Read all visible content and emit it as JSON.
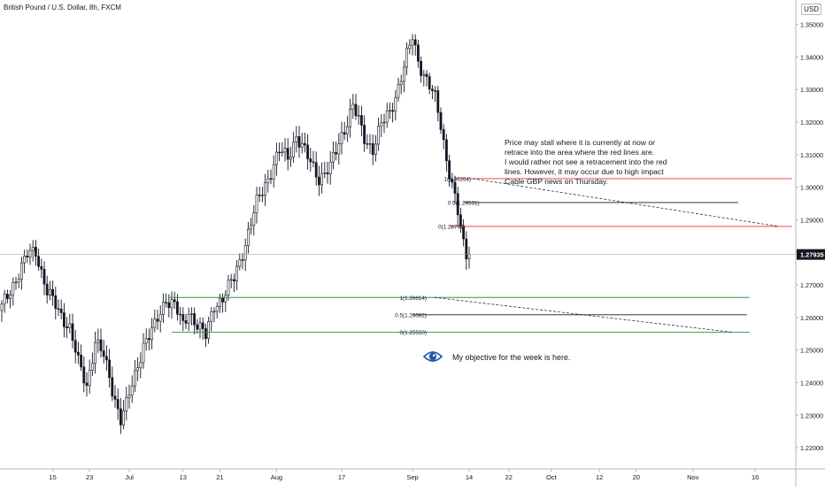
{
  "header": {
    "title": "British Pound / U.S. Dollar, 8h, FXCM",
    "currency": "USD"
  },
  "note": {
    "lines": [
      "Price may stall where it is currently at now or",
      "retrace into the area where the red lines are.",
      "I would rather not see a retracement into the red",
      "lines. However, it may occur due to high impact",
      "Cable GBP news on Thursday."
    ]
  },
  "objective": {
    "text": "My objective for the week is here.",
    "icon": "eye-icon"
  },
  "colors": {
    "up": "#131722",
    "down": "#131722",
    "red_level": "#e53935",
    "green_level": "#388e3c",
    "price_label_bg": "#131722"
  },
  "chart_data": {
    "type": "candlestick",
    "title": "British Pound / U.S. Dollar, 8h, FXCM",
    "ylim": [
      1.2135,
      1.3575
    ],
    "y_ticks": [
      "1.35000",
      "1.34000",
      "1.33000",
      "1.32000",
      "1.31000",
      "1.30000",
      "1.29000",
      "1.28000",
      "1.27000",
      "1.26000",
      "1.25000",
      "1.24000",
      "1.23000",
      "1.22000"
    ],
    "x_ticks": [
      {
        "label": "15",
        "idx": 18
      },
      {
        "label": "23",
        "idx": 31
      },
      {
        "label": "Jul",
        "idx": 45
      },
      {
        "label": "13",
        "idx": 64
      },
      {
        "label": "21",
        "idx": 77
      },
      {
        "label": "Aug",
        "idx": 97
      },
      {
        "label": "17",
        "idx": 120
      },
      {
        "label": "Sep",
        "idx": 145
      },
      {
        "label": "14",
        "idx": 165
      },
      {
        "label": "22",
        "idx": 179
      },
      {
        "label": "Oct",
        "idx": 194
      },
      {
        "label": "12",
        "idx": 211
      },
      {
        "label": "20",
        "idx": 224
      },
      {
        "label": "Nov",
        "idx": 244
      },
      {
        "label": "16",
        "idx": 266
      }
    ],
    "last_price": "1.27935",
    "anchors": [
      [
        0,
        1.263
      ],
      [
        5,
        1.272
      ],
      [
        9,
        1.279
      ],
      [
        12,
        1.2805
      ],
      [
        16,
        1.268
      ],
      [
        20,
        1.262
      ],
      [
        24,
        1.257
      ],
      [
        27,
        1.246
      ],
      [
        30,
        1.239
      ],
      [
        33,
        1.253
      ],
      [
        36,
        1.248
      ],
      [
        39,
        1.238
      ],
      [
        42,
        1.229
      ],
      [
        44,
        1.233
      ],
      [
        47,
        1.242
      ],
      [
        50,
        1.252
      ],
      [
        54,
        1.257
      ],
      [
        58,
        1.266
      ],
      [
        61,
        1.264
      ],
      [
        64,
        1.257
      ],
      [
        66,
        1.262
      ],
      [
        69,
        1.258
      ],
      [
        72,
        1.254
      ],
      [
        75,
        1.264
      ],
      [
        78,
        1.266
      ],
      [
        82,
        1.272
      ],
      [
        86,
        1.283
      ],
      [
        90,
        1.295
      ],
      [
        94,
        1.303
      ],
      [
        98,
        1.311
      ],
      [
        101,
        1.309
      ],
      [
        104,
        1.316
      ],
      [
        108,
        1.309
      ],
      [
        112,
        1.303
      ],
      [
        116,
        1.306
      ],
      [
        120,
        1.316
      ],
      [
        124,
        1.325
      ],
      [
        128,
        1.315
      ],
      [
        131,
        1.312
      ],
      [
        134,
        1.319
      ],
      [
        137,
        1.323
      ],
      [
        140,
        1.331
      ],
      [
        142,
        1.337
      ],
      [
        144,
        1.343
      ],
      [
        145,
        1.346
      ],
      [
        147,
        1.339
      ],
      [
        150,
        1.333
      ],
      [
        153,
        1.327
      ],
      [
        155,
        1.319
      ],
      [
        157,
        1.309
      ],
      [
        159,
        1.301
      ],
      [
        161,
        1.292
      ],
      [
        162,
        1.287
      ],
      [
        163,
        1.282
      ],
      [
        164,
        1.279
      ],
      [
        165,
        1.27935
      ]
    ],
    "levels": [
      {
        "label": "1(1.30264)",
        "value": 1.30264,
        "color": "red",
        "x_start_idx": 160,
        "x_end_idx": 279
      },
      {
        "label": "0.5(1.29531)",
        "value": 1.29531,
        "color": "black",
        "x_start_idx": 163,
        "x_end_idx": 260
      },
      {
        "label": "0(1.28797)",
        "value": 1.28797,
        "color": "red",
        "x_start_idx": 158,
        "x_end_idx": 279
      },
      {
        "label": "1(1.26614)",
        "value": 1.26614,
        "color": "green",
        "x_start_idx": 59,
        "x_end_idx": 264
      },
      {
        "label": "0.5(1.26082)",
        "value": 1.26082,
        "color": "black",
        "x_start_idx": 145,
        "x_end_idx": 263
      },
      {
        "label": "0(1.25550)",
        "value": 1.2555,
        "color": "green",
        "x_start_idx": 60,
        "x_end_idx": 264
      }
    ]
  }
}
